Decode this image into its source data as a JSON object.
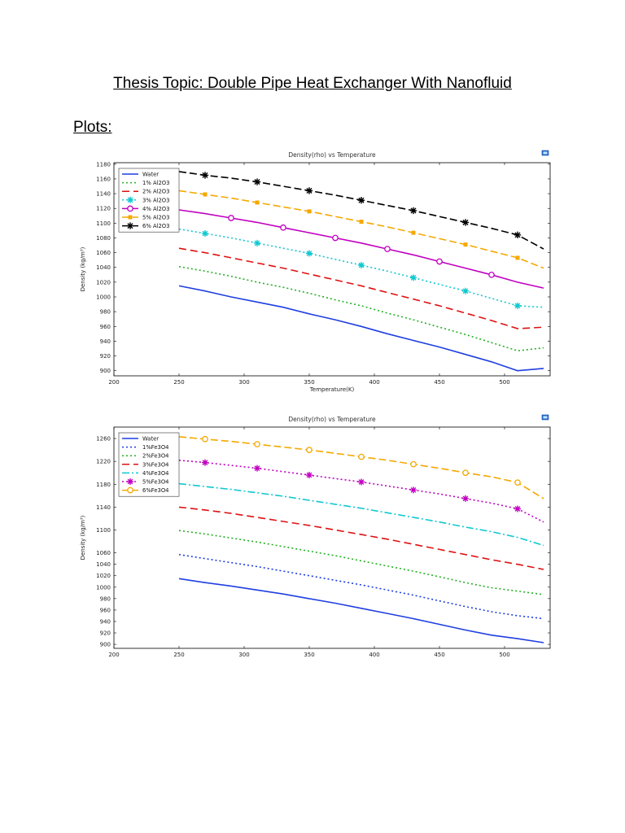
{
  "document": {
    "title": "Thesis Topic: Double Pipe Heat Exchanger With Nanofluid",
    "section_heading": "Plots:"
  },
  "chart_data": [
    {
      "type": "line",
      "title": "Density(rho) vs Temperature",
      "xlabel": "Temperature(K)",
      "ylabel": "Density (kg/m³)",
      "xlim": [
        200,
        535
      ],
      "ylim": [
        893,
        1182
      ],
      "xticks": [
        200,
        250,
        300,
        350,
        400,
        450,
        500
      ],
      "yticks": [
        900,
        920,
        940,
        960,
        980,
        1000,
        1020,
        1040,
        1060,
        1080,
        1100,
        1120,
        1140,
        1160,
        1180
      ],
      "grid": false,
      "legend_position": "top-left",
      "x": [
        250,
        270,
        290,
        310,
        330,
        350,
        370,
        390,
        410,
        430,
        450,
        470,
        490,
        510,
        530
      ],
      "series": [
        {
          "name": "Water",
          "color": "#1f3fe0",
          "dash": "",
          "marker": "none",
          "values": [
            1015,
            1008,
            1000,
            993,
            986,
            977,
            969,
            960,
            950,
            941,
            932,
            922,
            912,
            900,
            903
          ]
        },
        {
          "name": "1% Al2O3",
          "color": "#22b022",
          "dash": "2 3",
          "marker": "none",
          "values": [
            1041,
            1035,
            1028,
            1020,
            1013,
            1005,
            996,
            988,
            978,
            969,
            959,
            949,
            938,
            927,
            931
          ]
        },
        {
          "name": "2% Al2O3",
          "color": "#dd1111",
          "dash": "9 5",
          "marker": "none",
          "values": [
            1066,
            1060,
            1053,
            1046,
            1039,
            1031,
            1023,
            1015,
            1006,
            997,
            988,
            978,
            968,
            957,
            959
          ]
        },
        {
          "name": "3% Al2O3",
          "color": "#11c8d0",
          "dash": "2 3",
          "marker": "asterisk",
          "values": [
            1092,
            1086,
            1080,
            1073,
            1066,
            1059,
            1051,
            1043,
            1035,
            1026,
            1017,
            1008,
            998,
            988,
            986
          ]
        },
        {
          "name": "4% Al2O3",
          "color": "#c000c0",
          "dash": "",
          "marker": "circle",
          "values": [
            1118,
            1113,
            1107,
            1101,
            1094,
            1087,
            1080,
            1073,
            1065,
            1057,
            1048,
            1039,
            1030,
            1020,
            1012
          ]
        },
        {
          "name": "5% Al2O3",
          "color": "#f5a800",
          "dash": "9 4",
          "marker": "square",
          "values": [
            1144,
            1139,
            1134,
            1128,
            1122,
            1116,
            1109,
            1102,
            1095,
            1087,
            1079,
            1071,
            1062,
            1053,
            1039
          ]
        },
        {
          "name": "6% Al2O3",
          "color": "#000000",
          "dash": "9 4",
          "marker": "star",
          "values": [
            1170,
            1165,
            1161,
            1156,
            1150,
            1144,
            1138,
            1131,
            1124,
            1117,
            1109,
            1101,
            1093,
            1084,
            1065
          ]
        }
      ]
    },
    {
      "type": "line",
      "title": "Density(rho) vs Temperature",
      "xlabel": "",
      "ylabel": "Density (kg/m³)",
      "xlim": [
        200,
        535
      ],
      "ylim": [
        893,
        1280
      ],
      "xticks": [
        200,
        250,
        300,
        350,
        400,
        450,
        500
      ],
      "yticks": [
        900,
        920,
        940,
        960,
        980,
        1000,
        1020,
        1040,
        1060,
        1100,
        1140,
        1180,
        1220,
        1260
      ],
      "grid": false,
      "legend_position": "top-left",
      "x": [
        250,
        270,
        290,
        310,
        330,
        350,
        370,
        390,
        410,
        430,
        450,
        470,
        490,
        510,
        530
      ],
      "series": [
        {
          "name": "Water",
          "color": "#1f3fe0",
          "dash": "",
          "marker": "none",
          "values": [
            1015,
            1008,
            1002,
            995,
            988,
            980,
            972,
            963,
            954,
            945,
            935,
            925,
            916,
            910,
            903
          ]
        },
        {
          "name": "1%Fe3O4",
          "color": "#1f3fe0",
          "dash": "2 3",
          "marker": "none",
          "values": [
            1057,
            1050,
            1043,
            1036,
            1028,
            1020,
            1012,
            1004,
            995,
            986,
            976,
            966,
            957,
            950,
            945
          ]
        },
        {
          "name": "2%Fe3O4",
          "color": "#22b022",
          "dash": "2 3",
          "marker": "none",
          "values": [
            1099,
            1093,
            1086,
            1079,
            1071,
            1063,
            1055,
            1046,
            1037,
            1028,
            1018,
            1008,
            999,
            993,
            987
          ]
        },
        {
          "name": "3%Fe3O4",
          "color": "#dd1111",
          "dash": "9 5",
          "marker": "none",
          "values": [
            1140,
            1135,
            1129,
            1122,
            1115,
            1108,
            1100,
            1092,
            1084,
            1075,
            1066,
            1057,
            1048,
            1040,
            1031
          ]
        },
        {
          "name": "4%Fe3O4",
          "color": "#11c8d0",
          "dash": "9 3 2 3",
          "marker": "none",
          "values": [
            1181,
            1176,
            1171,
            1165,
            1159,
            1152,
            1145,
            1138,
            1130,
            1122,
            1114,
            1105,
            1097,
            1087,
            1073
          ]
        },
        {
          "name": "5%Fe3O4",
          "color": "#c000c0",
          "dash": "2 3",
          "marker": "asterisk",
          "values": [
            1222,
            1218,
            1213,
            1208,
            1202,
            1196,
            1190,
            1184,
            1177,
            1170,
            1163,
            1155,
            1147,
            1137,
            1114
          ]
        },
        {
          "name": "6%Fe3O4",
          "color": "#f5a800",
          "dash": "9 4",
          "marker": "circle",
          "values": [
            1263,
            1259,
            1255,
            1250,
            1245,
            1240,
            1234,
            1228,
            1222,
            1215,
            1208,
            1200,
            1193,
            1183,
            1155
          ]
        }
      ]
    }
  ]
}
